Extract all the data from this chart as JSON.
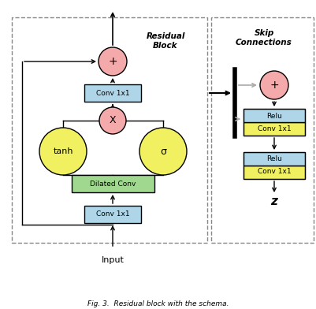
{
  "fig_width": 4.02,
  "fig_height": 3.92,
  "dpi": 100,
  "bg_color": "#ffffff",
  "residual_block_label": "Residual\nBlock",
  "skip_connections_label": "Skip\nConnections",
  "input_label": "Input",
  "z_label": "z",
  "tanh_label": "tanh",
  "sigma_label": "σ",
  "plus_label": "+",
  "times_label": "X",
  "conv1x1_label": "Conv 1x1",
  "dilated_conv_label": "Dilated Conv",
  "relu_label": "Relu",
  "circle_yellow": "#f0f060",
  "circle_pink": "#f4aaaa",
  "box_blue": "#aed6e8",
  "box_green": "#a0d890",
  "box_yellow": "#f0f060",
  "dash_color": "#888888",
  "black": "#000000",
  "gray_arrow": "#aaaaaa"
}
